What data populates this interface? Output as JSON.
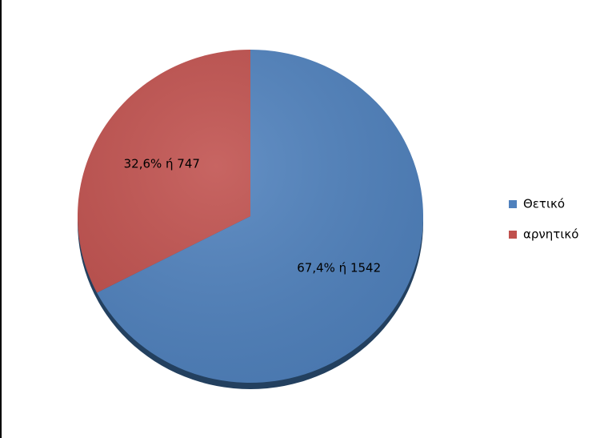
{
  "chart_data": {
    "type": "pie",
    "categories": [
      "Θετικό",
      "αρνητικό"
    ],
    "values": [
      67.4,
      32.6
    ],
    "counts": [
      1542,
      747
    ],
    "value_labels": [
      "67,4% ή 1542",
      "32,6% ή 747"
    ],
    "colors": [
      "#4f81bd",
      "#c0504d"
    ],
    "legend": "right"
  }
}
